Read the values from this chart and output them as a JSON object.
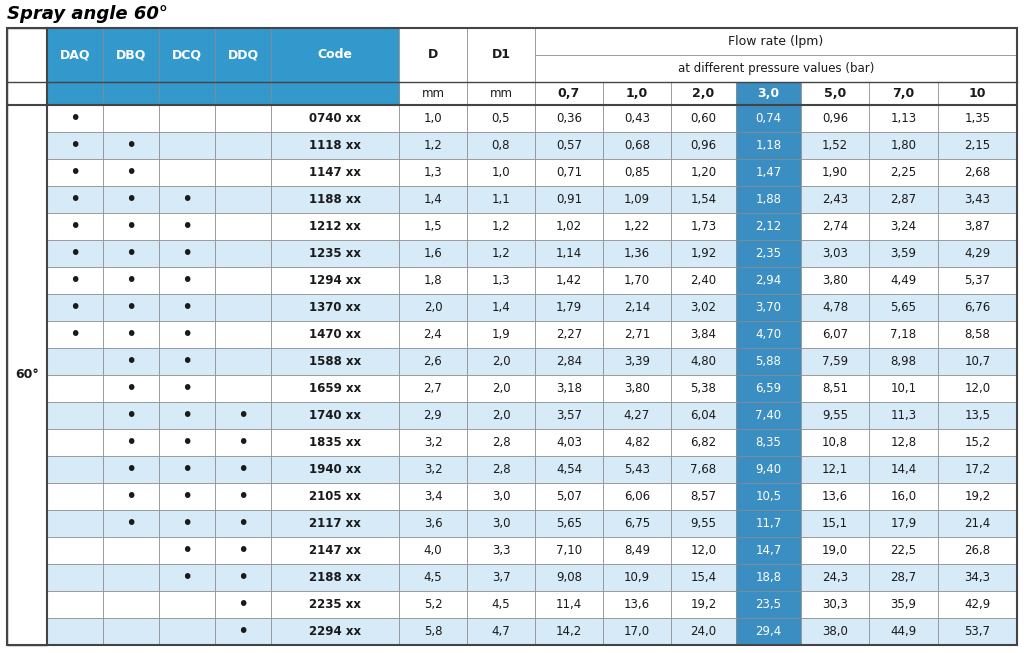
{
  "title": "Spray angle 60°",
  "header_bg": "#3399CC",
  "header_text_color": "#FFFFFF",
  "col30_highlight_bg": "#3399CC",
  "alt_row_bg": "#D6EAF8",
  "white_row_bg": "#FFFFFF",
  "border_color": "#333333",
  "text_color": "#1a1a1a",
  "title_color": "#000000",
  "rows": [
    {
      "DAQ": "•",
      "DBQ": "",
      "DCQ": "",
      "DDQ": "",
      "Code": "0740 xx",
      "D": "1,0",
      "D1": "0,5",
      "v07": "0,36",
      "v10": "0,43",
      "v20": "0,60",
      "v30": "0,74",
      "v50": "0,96",
      "v70": "1,13",
      "v10b": "1,35"
    },
    {
      "DAQ": "•",
      "DBQ": "•",
      "DCQ": "",
      "DDQ": "",
      "Code": "1118 xx",
      "D": "1,2",
      "D1": "0,8",
      "v07": "0,57",
      "v10": "0,68",
      "v20": "0,96",
      "v30": "1,18",
      "v50": "1,52",
      "v70": "1,80",
      "v10b": "2,15"
    },
    {
      "DAQ": "•",
      "DBQ": "•",
      "DCQ": "",
      "DDQ": "",
      "Code": "1147 xx",
      "D": "1,3",
      "D1": "1,0",
      "v07": "0,71",
      "v10": "0,85",
      "v20": "1,20",
      "v30": "1,47",
      "v50": "1,90",
      "v70": "2,25",
      "v10b": "2,68"
    },
    {
      "DAQ": "•",
      "DBQ": "•",
      "DCQ": "•",
      "DDQ": "",
      "Code": "1188 xx",
      "D": "1,4",
      "D1": "1,1",
      "v07": "0,91",
      "v10": "1,09",
      "v20": "1,54",
      "v30": "1,88",
      "v50": "2,43",
      "v70": "2,87",
      "v10b": "3,43"
    },
    {
      "DAQ": "•",
      "DBQ": "•",
      "DCQ": "•",
      "DDQ": "",
      "Code": "1212 xx",
      "D": "1,5",
      "D1": "1,2",
      "v07": "1,02",
      "v10": "1,22",
      "v20": "1,73",
      "v30": "2,12",
      "v50": "2,74",
      "v70": "3,24",
      "v10b": "3,87"
    },
    {
      "DAQ": "•",
      "DBQ": "•",
      "DCQ": "•",
      "DDQ": "",
      "Code": "1235 xx",
      "D": "1,6",
      "D1": "1,2",
      "v07": "1,14",
      "v10": "1,36",
      "v20": "1,92",
      "v30": "2,35",
      "v50": "3,03",
      "v70": "3,59",
      "v10b": "4,29"
    },
    {
      "DAQ": "•",
      "DBQ": "•",
      "DCQ": "•",
      "DDQ": "",
      "Code": "1294 xx",
      "D": "1,8",
      "D1": "1,3",
      "v07": "1,42",
      "v10": "1,70",
      "v20": "2,40",
      "v30": "2,94",
      "v50": "3,80",
      "v70": "4,49",
      "v10b": "5,37"
    },
    {
      "DAQ": "•",
      "DBQ": "•",
      "DCQ": "•",
      "DDQ": "",
      "Code": "1370 xx",
      "D": "2,0",
      "D1": "1,4",
      "v07": "1,79",
      "v10": "2,14",
      "v20": "3,02",
      "v30": "3,70",
      "v50": "4,78",
      "v70": "5,65",
      "v10b": "6,76"
    },
    {
      "DAQ": "•",
      "DBQ": "•",
      "DCQ": "•",
      "DDQ": "",
      "Code": "1470 xx",
      "D": "2,4",
      "D1": "1,9",
      "v07": "2,27",
      "v10": "2,71",
      "v20": "3,84",
      "v30": "4,70",
      "v50": "6,07",
      "v70": "7,18",
      "v10b": "8,58"
    },
    {
      "DAQ": "",
      "DBQ": "•",
      "DCQ": "•",
      "DDQ": "",
      "Code": "1588 xx",
      "D": "2,6",
      "D1": "2,0",
      "v07": "2,84",
      "v10": "3,39",
      "v20": "4,80",
      "v30": "5,88",
      "v50": "7,59",
      "v70": "8,98",
      "v10b": "10,7"
    },
    {
      "DAQ": "",
      "DBQ": "•",
      "DCQ": "•",
      "DDQ": "",
      "Code": "1659 xx",
      "D": "2,7",
      "D1": "2,0",
      "v07": "3,18",
      "v10": "3,80",
      "v20": "5,38",
      "v30": "6,59",
      "v50": "8,51",
      "v70": "10,1",
      "v10b": "12,0"
    },
    {
      "DAQ": "",
      "DBQ": "•",
      "DCQ": "•",
      "DDQ": "•",
      "Code": "1740 xx",
      "D": "2,9",
      "D1": "2,0",
      "v07": "3,57",
      "v10": "4,27",
      "v20": "6,04",
      "v30": "7,40",
      "v50": "9,55",
      "v70": "11,3",
      "v10b": "13,5"
    },
    {
      "DAQ": "",
      "DBQ": "•",
      "DCQ": "•",
      "DDQ": "•",
      "Code": "1835 xx",
      "D": "3,2",
      "D1": "2,8",
      "v07": "4,03",
      "v10": "4,82",
      "v20": "6,82",
      "v30": "8,35",
      "v50": "10,8",
      "v70": "12,8",
      "v10b": "15,2"
    },
    {
      "DAQ": "",
      "DBQ": "•",
      "DCQ": "•",
      "DDQ": "•",
      "Code": "1940 xx",
      "D": "3,2",
      "D1": "2,8",
      "v07": "4,54",
      "v10": "5,43",
      "v20": "7,68",
      "v30": "9,40",
      "v50": "12,1",
      "v70": "14,4",
      "v10b": "17,2"
    },
    {
      "DAQ": "",
      "DBQ": "•",
      "DCQ": "•",
      "DDQ": "•",
      "Code": "2105 xx",
      "D": "3,4",
      "D1": "3,0",
      "v07": "5,07",
      "v10": "6,06",
      "v20": "8,57",
      "v30": "10,5",
      "v50": "13,6",
      "v70": "16,0",
      "v10b": "19,2"
    },
    {
      "DAQ": "",
      "DBQ": "•",
      "DCQ": "•",
      "DDQ": "•",
      "Code": "2117 xx",
      "D": "3,6",
      "D1": "3,0",
      "v07": "5,65",
      "v10": "6,75",
      "v20": "9,55",
      "v30": "11,7",
      "v50": "15,1",
      "v70": "17,9",
      "v10b": "21,4"
    },
    {
      "DAQ": "",
      "DBQ": "",
      "DCQ": "•",
      "DDQ": "•",
      "Code": "2147 xx",
      "D": "4,0",
      "D1": "3,3",
      "v07": "7,10",
      "v10": "8,49",
      "v20": "12,0",
      "v30": "14,7",
      "v50": "19,0",
      "v70": "22,5",
      "v10b": "26,8"
    },
    {
      "DAQ": "",
      "DBQ": "",
      "DCQ": "•",
      "DDQ": "•",
      "Code": "2188 xx",
      "D": "4,5",
      "D1": "3,7",
      "v07": "9,08",
      "v10": "10,9",
      "v20": "15,4",
      "v30": "18,8",
      "v50": "24,3",
      "v70": "28,7",
      "v10b": "34,3"
    },
    {
      "DAQ": "",
      "DBQ": "",
      "DCQ": "",
      "DDQ": "•",
      "Code": "2235 xx",
      "D": "5,2",
      "D1": "4,5",
      "v07": "11,4",
      "v10": "13,6",
      "v20": "19,2",
      "v30": "23,5",
      "v50": "30,3",
      "v70": "35,9",
      "v10b": "42,9"
    },
    {
      "DAQ": "",
      "DBQ": "",
      "DCQ": "",
      "DDQ": "•",
      "Code": "2294 xx",
      "D": "5,8",
      "D1": "4,7",
      "v07": "14,2",
      "v10": "17,0",
      "v20": "24,0",
      "v30": "29,4",
      "v50": "38,0",
      "v70": "44,9",
      "v10b": "53,7"
    }
  ]
}
